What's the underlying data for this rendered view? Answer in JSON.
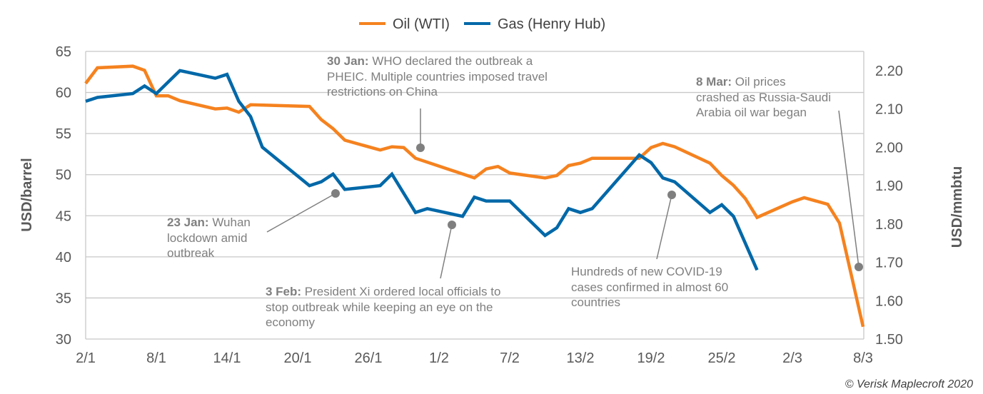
{
  "chart_data": {
    "type": "line",
    "legend": {
      "placement": "top",
      "entries": [
        "Oil (WTI)",
        "Gas (Henry Hub)"
      ]
    },
    "grid": true,
    "x_ticks": [
      "2/1",
      "8/1",
      "14/1",
      "20/1",
      "26/1",
      "1/2",
      "7/2",
      "13/2",
      "19/2",
      "25/2",
      "2/3",
      "8/3"
    ],
    "y_left": {
      "label": "USD/barrel",
      "range": [
        30,
        65
      ],
      "ticks": [
        "30",
        "35",
        "40",
        "45",
        "50",
        "55",
        "60",
        "65"
      ]
    },
    "y_right": {
      "label": "USD/mmbtu",
      "range": [
        1.5,
        2.25
      ],
      "ticks": [
        "1.50",
        "1.60",
        "1.70",
        "1.80",
        "1.90",
        "2.00",
        "2.10",
        "2.20"
      ]
    },
    "series": [
      {
        "name": "Oil (WTI)",
        "axis": "left",
        "color": "#F5821F",
        "x": [
          "2/1",
          "3/1",
          "6/1",
          "7/1",
          "8/1",
          "9/1",
          "10/1",
          "13/1",
          "14/1",
          "15/1",
          "16/1",
          "21/1",
          "22/1",
          "23/1",
          "24/1",
          "27/1",
          "28/1",
          "29/1",
          "30/1",
          "4/2",
          "5/2",
          "6/2",
          "7/2",
          "10/2",
          "11/2",
          "12/2",
          "13/2",
          "14/2",
          "18/2",
          "19/2",
          "20/2",
          "21/2",
          "24/2",
          "25/2",
          "26/2",
          "27/2",
          "28/2",
          "2/3",
          "3/3",
          "5/3",
          "6/3",
          "8/3"
        ],
        "values": [
          61.1,
          63.0,
          63.2,
          62.7,
          59.6,
          59.6,
          59.0,
          58.0,
          58.1,
          57.6,
          58.5,
          58.3,
          56.7,
          55.6,
          54.2,
          53.0,
          53.4,
          53.3,
          52.0,
          49.6,
          50.7,
          51.0,
          50.2,
          49.6,
          49.9,
          51.1,
          51.4,
          52.0,
          52.0,
          53.3,
          53.8,
          53.4,
          51.4,
          49.9,
          48.7,
          47.1,
          44.8,
          46.7,
          47.2,
          46.4,
          44.1,
          31.5
        ]
      },
      {
        "name": "Gas (Henry Hub)",
        "axis": "right",
        "color": "#0068A8",
        "x": [
          "2/1",
          "3/1",
          "6/1",
          "7/1",
          "8/1",
          "10/1",
          "13/1",
          "14/1",
          "15/1",
          "16/1",
          "17/1",
          "21/1",
          "22/1",
          "23/1",
          "24/1",
          "27/1",
          "28/1",
          "30/1",
          "31/1",
          "3/2",
          "4/2",
          "5/2",
          "7/2",
          "10/2",
          "11/2",
          "12/2",
          "13/2",
          "14/2",
          "18/2",
          "19/2",
          "20/2",
          "21/2",
          "24/2",
          "25/2",
          "26/2",
          "28/2"
        ],
        "values": [
          2.12,
          2.13,
          2.14,
          2.16,
          2.14,
          2.2,
          2.18,
          2.19,
          2.12,
          2.08,
          2.0,
          1.9,
          1.91,
          1.93,
          1.89,
          1.9,
          1.93,
          1.83,
          1.84,
          1.82,
          1.87,
          1.86,
          1.86,
          1.77,
          1.79,
          1.84,
          1.83,
          1.84,
          1.98,
          1.96,
          1.92,
          1.91,
          1.83,
          1.85,
          1.82,
          1.68
        ]
      }
    ],
    "annotations": [
      {
        "bold": "30 Jan:",
        "text": " WHO declared the outbreak a PHEIC. Multiple countries imposed travel restrictions on China"
      },
      {
        "bold": "23 Jan:",
        "text": " Wuhan lockdown amid outbreak"
      },
      {
        "bold": "3 Feb:",
        "text": " President Xi ordered local officials to stop outbreak while keeping an eye on the economy"
      },
      {
        "bold": "",
        "text": "Hundreds of new COVID-19 cases confirmed in almost 60 countries"
      },
      {
        "bold": "8 Mar:",
        "text": " Oil prices crashed as Russia-Saudi Arabia oil war began"
      }
    ],
    "annotation_color": "#7F7F7F"
  },
  "copyright": "© Verisk Maplecroft 2020"
}
